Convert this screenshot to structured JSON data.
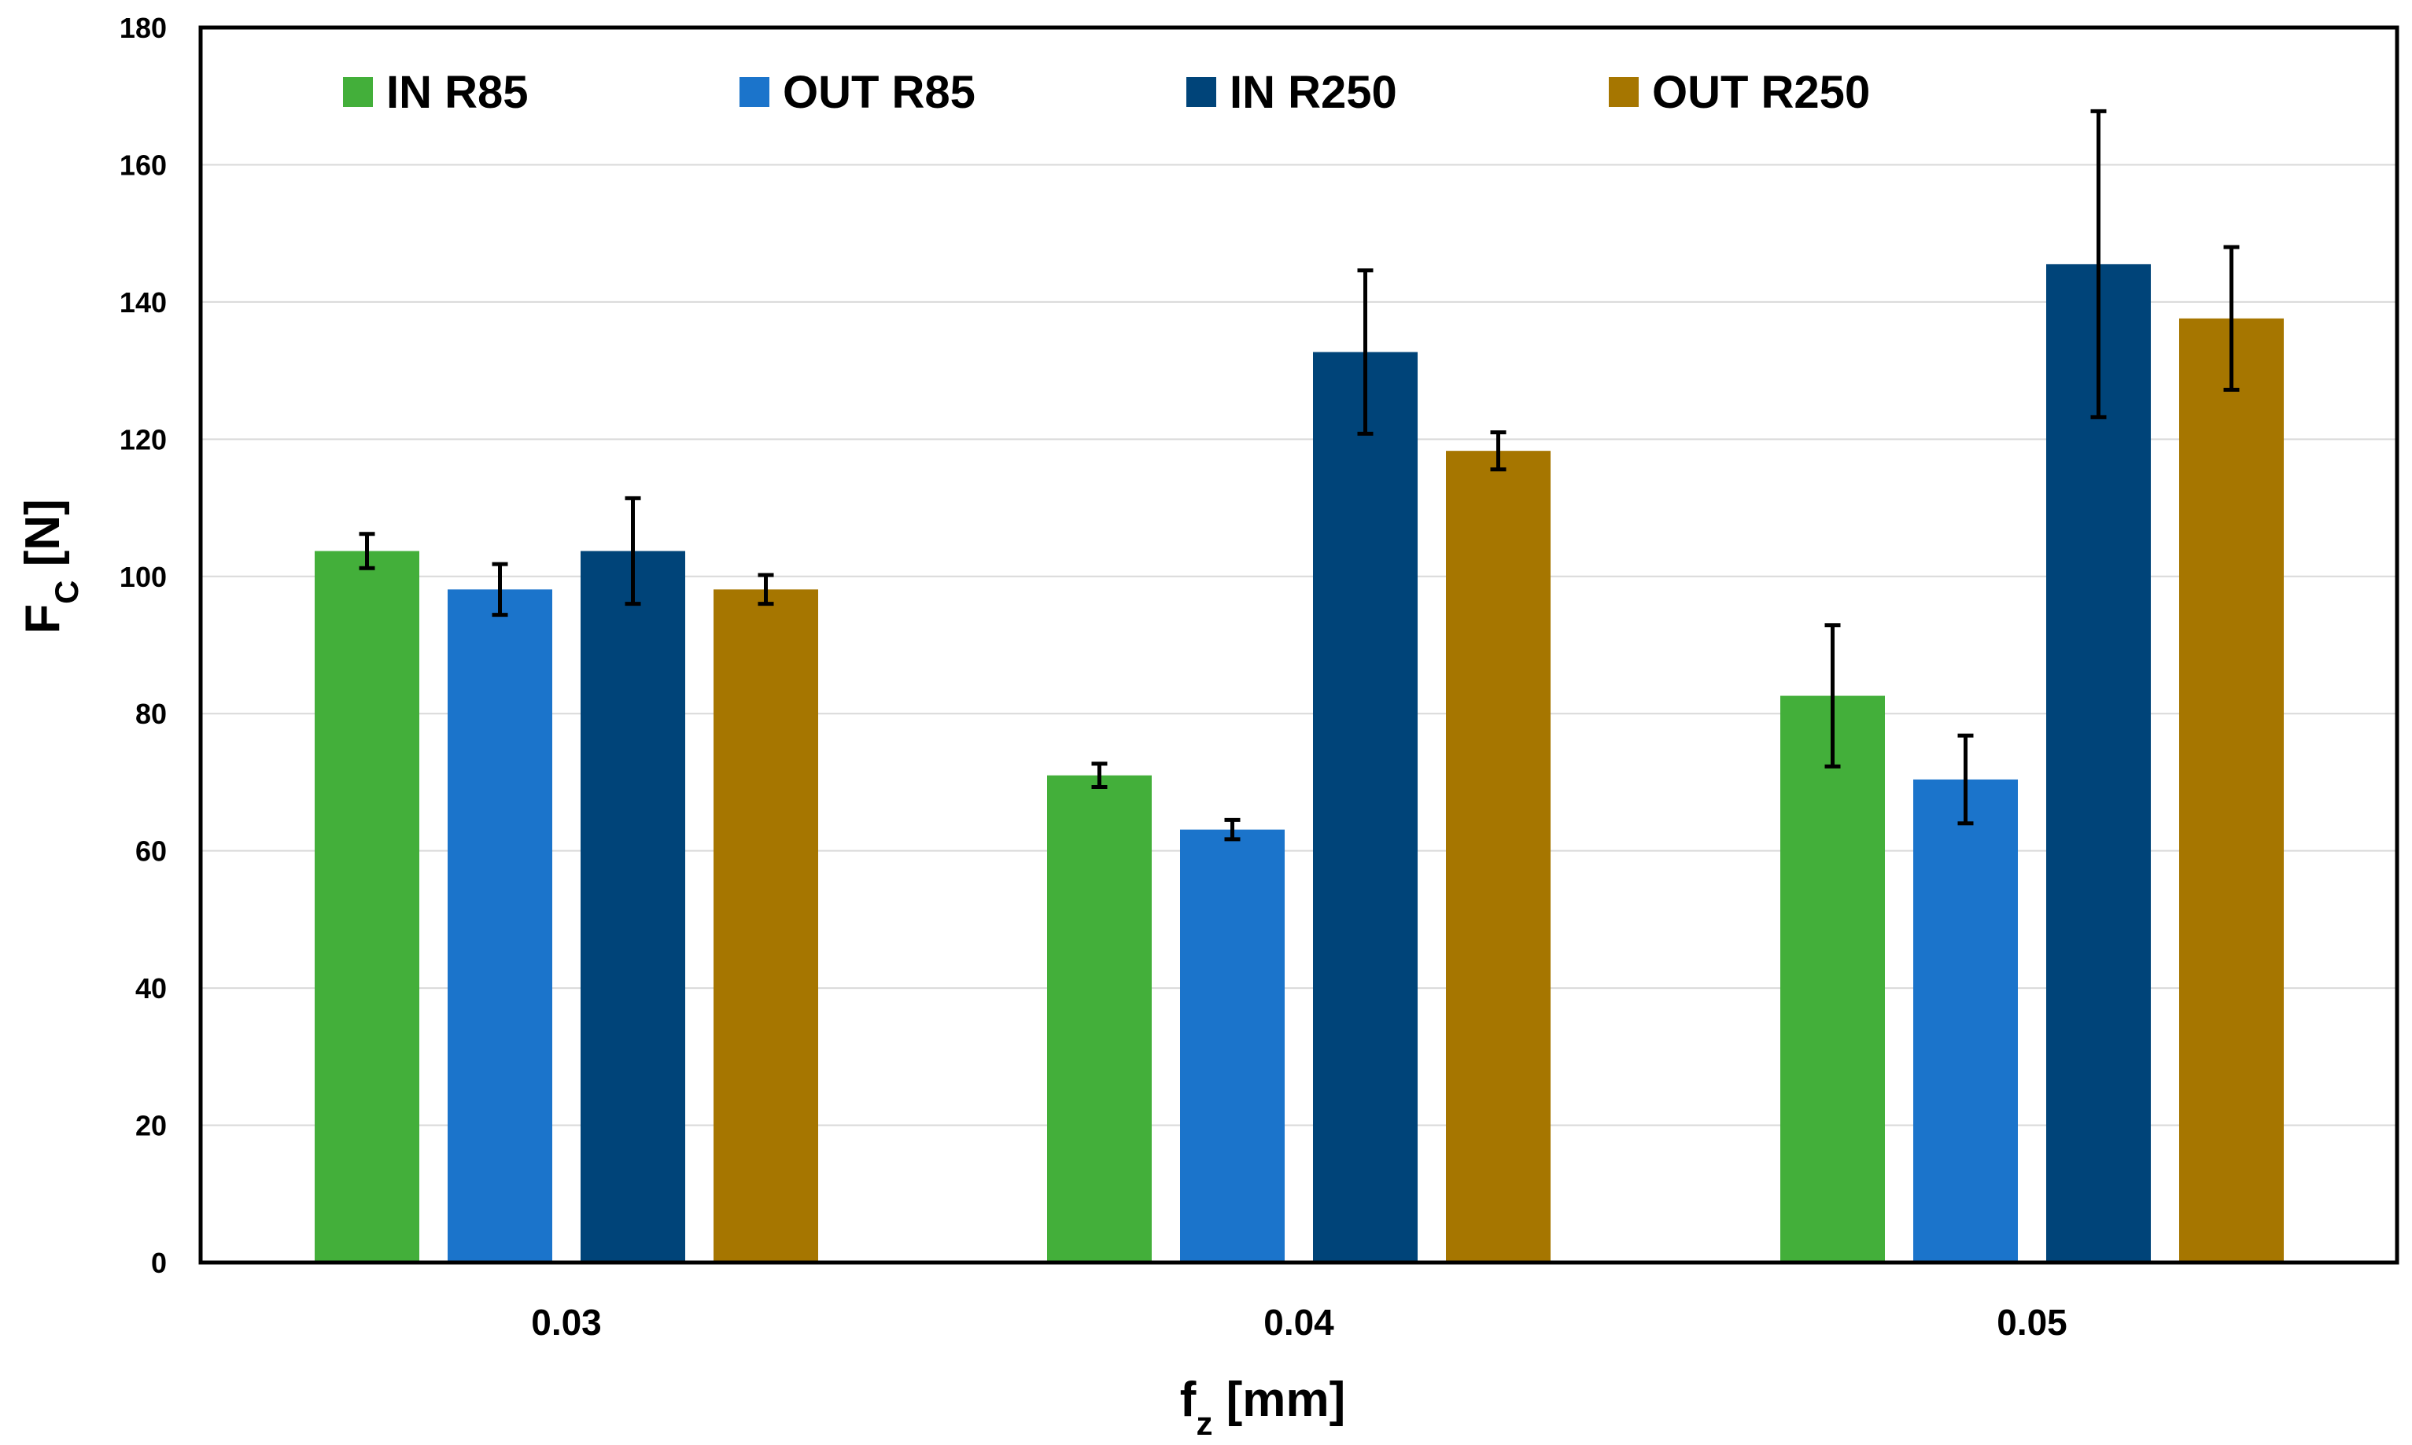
{
  "chart_data": {
    "type": "bar",
    "title": "",
    "categories": [
      "0.03",
      "0.04",
      "0.05"
    ],
    "xlabel": {
      "main": "f",
      "sub": "z",
      "rest": " [mm]"
    },
    "ylabel": {
      "main": "F",
      "sub": "C",
      "rest": " [N]"
    },
    "ylim": [
      0,
      180
    ],
    "yticks": [
      "0",
      "20",
      "40",
      "60",
      "80",
      "100",
      "120",
      "140",
      "160",
      "180"
    ],
    "grid": true,
    "legend_position": "top",
    "series": [
      {
        "name": "IN R85",
        "color": "#43AF3A",
        "values": [
          103.7,
          71.0,
          82.6
        ],
        "errors": [
          2.5,
          1.7,
          10.3
        ]
      },
      {
        "name": "OUT R85",
        "color": "#1B74CB",
        "values": [
          98.1,
          63.1,
          70.4
        ],
        "errors": [
          3.7,
          1.4,
          6.4
        ]
      },
      {
        "name": "IN R250",
        "color": "#004479",
        "values": [
          103.7,
          132.7,
          145.5
        ],
        "errors": [
          7.7,
          11.9,
          22.3
        ]
      },
      {
        "name": "OUT R250",
        "color": "#A67600",
        "values": [
          98.1,
          118.3,
          137.6
        ],
        "errors": [
          2.1,
          2.7,
          10.4
        ]
      }
    ]
  }
}
